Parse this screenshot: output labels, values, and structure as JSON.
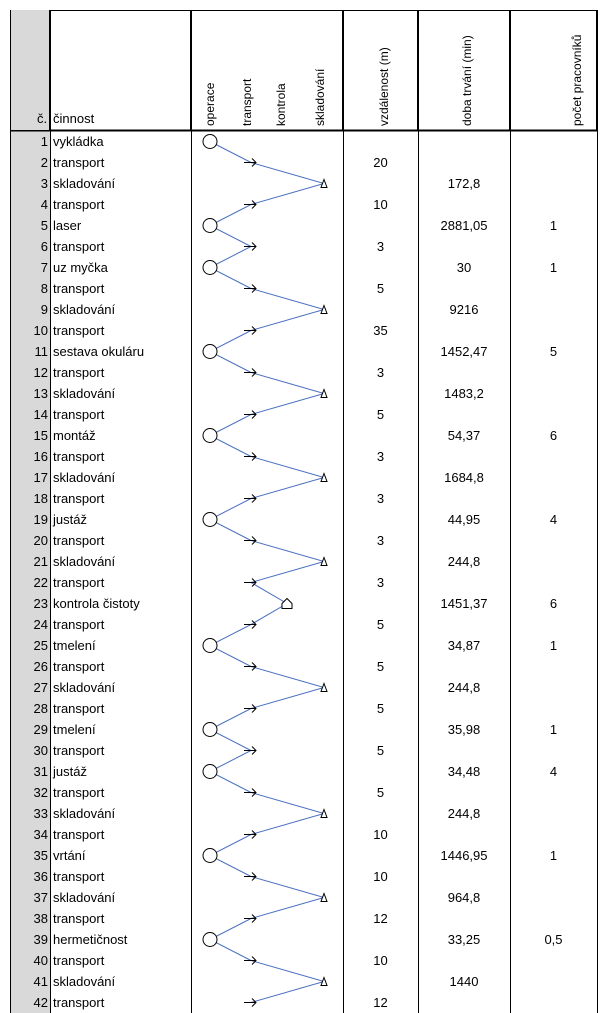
{
  "headers": {
    "no": "č.",
    "activity": "činnost",
    "operation": "operace",
    "transport": "transport",
    "control": "kontrola",
    "storage": "skladování",
    "distance": "vzdálenost (m)",
    "duration": "doba trvání (min)",
    "workers": "počet pracovníků"
  },
  "rows": [
    {
      "n": "1",
      "a": "vykládka",
      "s": "op",
      "d": "",
      "t": "",
      "w": ""
    },
    {
      "n": "2",
      "a": "transport",
      "s": "tr",
      "d": "20",
      "t": "",
      "w": ""
    },
    {
      "n": "3",
      "a": "skladování",
      "s": "st",
      "d": "",
      "t": "172,8",
      "w": ""
    },
    {
      "n": "4",
      "a": "transport",
      "s": "tr",
      "d": "10",
      "t": "",
      "w": ""
    },
    {
      "n": "5",
      "a": "laser",
      "s": "op",
      "d": "",
      "t": "2881,05",
      "w": "1"
    },
    {
      "n": "6",
      "a": "transport",
      "s": "tr",
      "d": "3",
      "t": "",
      "w": ""
    },
    {
      "n": "7",
      "a": "uz myčka",
      "s": "op",
      "d": "",
      "t": "30",
      "w": "1"
    },
    {
      "n": "8",
      "a": "transport",
      "s": "tr",
      "d": "5",
      "t": "",
      "w": ""
    },
    {
      "n": "9",
      "a": "skladování",
      "s": "st",
      "d": "",
      "t": "9216",
      "w": ""
    },
    {
      "n": "10",
      "a": "transport",
      "s": "tr",
      "d": "35",
      "t": "",
      "w": ""
    },
    {
      "n": "11",
      "a": "sestava okuláru",
      "s": "op",
      "d": "",
      "t": "1452,47",
      "w": "5"
    },
    {
      "n": "12",
      "a": "transport",
      "s": "tr",
      "d": "3",
      "t": "",
      "w": ""
    },
    {
      "n": "13",
      "a": "skladování",
      "s": "st",
      "d": "",
      "t": "1483,2",
      "w": ""
    },
    {
      "n": "14",
      "a": "transport",
      "s": "tr",
      "d": "5",
      "t": "",
      "w": ""
    },
    {
      "n": "15",
      "a": "montáž",
      "s": "op",
      "d": "",
      "t": "54,37",
      "w": "6"
    },
    {
      "n": "16",
      "a": "transport",
      "s": "tr",
      "d": "3",
      "t": "",
      "w": ""
    },
    {
      "n": "17",
      "a": "skladování",
      "s": "st",
      "d": "",
      "t": "1684,8",
      "w": ""
    },
    {
      "n": "18",
      "a": "transport",
      "s": "tr",
      "d": "3",
      "t": "",
      "w": ""
    },
    {
      "n": "19",
      "a": "justáž",
      "s": "op",
      "d": "",
      "t": "44,95",
      "w": "4"
    },
    {
      "n": "20",
      "a": "transport",
      "s": "tr",
      "d": "3",
      "t": "",
      "w": ""
    },
    {
      "n": "21",
      "a": "skladování",
      "s": "st",
      "d": "",
      "t": "244,8",
      "w": ""
    },
    {
      "n": "22",
      "a": "transport",
      "s": "tr",
      "d": "3",
      "t": "",
      "w": ""
    },
    {
      "n": "23",
      "a": "kontrola čistoty",
      "s": "ko",
      "d": "",
      "t": "1451,37",
      "w": "6"
    },
    {
      "n": "24",
      "a": "transport",
      "s": "tr",
      "d": "5",
      "t": "",
      "w": ""
    },
    {
      "n": "25",
      "a": "tmelení",
      "s": "op",
      "d": "",
      "t": "34,87",
      "w": "1"
    },
    {
      "n": "26",
      "a": "transport",
      "s": "tr",
      "d": "5",
      "t": "",
      "w": ""
    },
    {
      "n": "27",
      "a": "skladování",
      "s": "st",
      "d": "",
      "t": "244,8",
      "w": ""
    },
    {
      "n": "28",
      "a": "transport",
      "s": "tr",
      "d": "5",
      "t": "",
      "w": ""
    },
    {
      "n": "29",
      "a": "tmelení",
      "s": "op",
      "d": "",
      "t": "35,98",
      "w": "1"
    },
    {
      "n": "30",
      "a": "transport",
      "s": "tr",
      "d": "5",
      "t": "",
      "w": ""
    },
    {
      "n": "31",
      "a": "justáž",
      "s": "op",
      "d": "",
      "t": "34,48",
      "w": "4"
    },
    {
      "n": "32",
      "a": "transport",
      "s": "tr",
      "d": "5",
      "t": "",
      "w": ""
    },
    {
      "n": "33",
      "a": "skladování",
      "s": "st",
      "d": "",
      "t": "244,8",
      "w": ""
    },
    {
      "n": "34",
      "a": "transport",
      "s": "tr",
      "d": "10",
      "t": "",
      "w": ""
    },
    {
      "n": "35",
      "a": "vrtání",
      "s": "op",
      "d": "",
      "t": "1446,95",
      "w": "1"
    },
    {
      "n": "36",
      "a": "transport",
      "s": "tr",
      "d": "10",
      "t": "",
      "w": ""
    },
    {
      "n": "37",
      "a": "skladování",
      "s": "st",
      "d": "",
      "t": "964,8",
      "w": ""
    },
    {
      "n": "38",
      "a": "transport",
      "s": "tr",
      "d": "12",
      "t": "",
      "w": ""
    },
    {
      "n": "39",
      "a": "hermetičnost",
      "s": "op",
      "d": "",
      "t": "33,25",
      "w": "0,5"
    },
    {
      "n": "40",
      "a": "transport",
      "s": "tr",
      "d": "10",
      "t": "",
      "w": ""
    },
    {
      "n": "41",
      "a": "skladování",
      "s": "st",
      "d": "",
      "t": "1440",
      "w": ""
    },
    {
      "n": "42",
      "a": "transport",
      "s": "tr",
      "d": "12",
      "t": "",
      "w": ""
    }
  ],
  "colors": {
    "grid": "#000000",
    "rownum_bg": "#d9d9d9",
    "line": "#4a6fc0"
  }
}
